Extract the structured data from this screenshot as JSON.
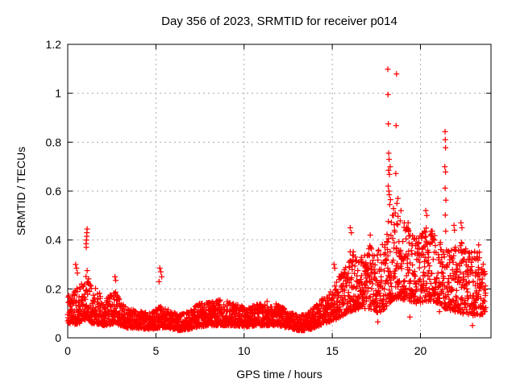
{
  "window": {
    "background": "#ffffff"
  },
  "chart_data": {
    "type": "scatter",
    "title": "Day 356 of 2023, SRMTID for receiver p014",
    "xlabel": "GPS time / hours",
    "ylabel": "SRMTID / TECUs",
    "xlim": [
      0,
      24
    ],
    "ylim": [
      0,
      1.2
    ],
    "x_ticks": [
      {
        "v": 0,
        "label": "0"
      },
      {
        "v": 5,
        "label": "5"
      },
      {
        "v": 10,
        "label": "10"
      },
      {
        "v": 15,
        "label": "15"
      },
      {
        "v": 20,
        "label": "20"
      }
    ],
    "y_ticks": [
      {
        "v": 0,
        "label": "0"
      },
      {
        "v": 0.2,
        "label": "0.2"
      },
      {
        "v": 0.4,
        "label": "0.4"
      },
      {
        "v": 0.6,
        "label": "0.6"
      },
      {
        "v": 0.8,
        "label": "0.8"
      },
      {
        "v": 1,
        "label": "1"
      },
      {
        "v": 1.2,
        "label": "1.2"
      }
    ],
    "grid": {
      "visible": true,
      "color": "#a9a9a9",
      "dash": "2,4"
    },
    "axis_color": "#000000",
    "legend": null,
    "series": [
      {
        "name": "SRMTID",
        "marker": "plus",
        "color": "#ff0000",
        "sampling_points_per_hour": 120,
        "time_start_hour": 0,
        "time_end_hour": 23.7,
        "band_envelope": [
          [
            0.0,
            0.06,
            0.17
          ],
          [
            0.4,
            0.055,
            0.19
          ],
          [
            0.7,
            0.06,
            0.23
          ],
          [
            0.9,
            0.07,
            0.22
          ],
          [
            1.1,
            0.08,
            0.28
          ],
          [
            1.35,
            0.06,
            0.21
          ],
          [
            1.7,
            0.055,
            0.2
          ],
          [
            2.1,
            0.05,
            0.15
          ],
          [
            2.45,
            0.055,
            0.18
          ],
          [
            2.7,
            0.06,
            0.2
          ],
          [
            3.0,
            0.05,
            0.15
          ],
          [
            3.4,
            0.04,
            0.12
          ],
          [
            4.0,
            0.038,
            0.11
          ],
          [
            4.7,
            0.035,
            0.1
          ],
          [
            5.2,
            0.04,
            0.13
          ],
          [
            5.7,
            0.04,
            0.115
          ],
          [
            6.3,
            0.03,
            0.095
          ],
          [
            6.9,
            0.035,
            0.11
          ],
          [
            7.4,
            0.045,
            0.14
          ],
          [
            8.1,
            0.05,
            0.145
          ],
          [
            8.8,
            0.05,
            0.16
          ],
          [
            9.4,
            0.05,
            0.14
          ],
          [
            10.1,
            0.045,
            0.125
          ],
          [
            10.7,
            0.05,
            0.135
          ],
          [
            11.3,
            0.05,
            0.15
          ],
          [
            11.9,
            0.05,
            0.14
          ],
          [
            12.5,
            0.04,
            0.11
          ],
          [
            13.1,
            0.03,
            0.09
          ],
          [
            13.6,
            0.03,
            0.1
          ],
          [
            14.1,
            0.045,
            0.14
          ],
          [
            14.6,
            0.06,
            0.17
          ],
          [
            15.1,
            0.07,
            0.21
          ],
          [
            15.6,
            0.09,
            0.28
          ],
          [
            16.1,
            0.11,
            0.38
          ],
          [
            16.6,
            0.12,
            0.33
          ],
          [
            17.1,
            0.12,
            0.38
          ],
          [
            17.6,
            0.1,
            0.36
          ],
          [
            18.0,
            0.12,
            0.42
          ],
          [
            18.35,
            0.15,
            0.54
          ],
          [
            18.8,
            0.16,
            0.5
          ],
          [
            19.3,
            0.15,
            0.45
          ],
          [
            19.8,
            0.14,
            0.41
          ],
          [
            20.3,
            0.15,
            0.46
          ],
          [
            20.8,
            0.15,
            0.43
          ],
          [
            21.3,
            0.12,
            0.37
          ],
          [
            21.8,
            0.11,
            0.36
          ],
          [
            22.3,
            0.1,
            0.4
          ],
          [
            22.8,
            0.09,
            0.35
          ],
          [
            23.3,
            0.09,
            0.36
          ],
          [
            23.7,
            0.1,
            0.28
          ]
        ],
        "outliers": [
          [
            0.45,
            0.3
          ],
          [
            0.5,
            0.285
          ],
          [
            0.55,
            0.265
          ],
          [
            1.04,
            0.385
          ],
          [
            1.05,
            0.37
          ],
          [
            1.06,
            0.4
          ],
          [
            1.08,
            0.415
          ],
          [
            1.09,
            0.43
          ],
          [
            1.1,
            0.445
          ],
          [
            2.68,
            0.25
          ],
          [
            2.72,
            0.235
          ],
          [
            5.18,
            0.23
          ],
          [
            5.22,
            0.285
          ],
          [
            5.28,
            0.27
          ],
          [
            5.33,
            0.25
          ],
          [
            15.1,
            0.3
          ],
          [
            15.14,
            0.285
          ],
          [
            16.02,
            0.45
          ],
          [
            16.08,
            0.43
          ],
          [
            17.15,
            0.42
          ],
          [
            17.58,
            0.065
          ],
          [
            18.15,
            1.098
          ],
          [
            18.16,
            0.995
          ],
          [
            18.17,
            0.62
          ],
          [
            18.18,
            0.875
          ],
          [
            18.19,
            0.685
          ],
          [
            18.2,
            0.755
          ],
          [
            18.21,
            0.6
          ],
          [
            18.22,
            0.73
          ],
          [
            18.23,
            0.585
          ],
          [
            18.24,
            0.668
          ],
          [
            18.26,
            0.545
          ],
          [
            18.28,
            0.7
          ],
          [
            18.3,
            0.565
          ],
          [
            18.6,
            0.672
          ],
          [
            18.62,
            0.868
          ],
          [
            18.64,
            1.079
          ],
          [
            18.66,
            0.55
          ],
          [
            18.72,
            0.57
          ],
          [
            18.9,
            0.52
          ],
          [
            19.3,
            0.47
          ],
          [
            19.4,
            0.085
          ],
          [
            20.3,
            0.52
          ],
          [
            20.36,
            0.5
          ],
          [
            21.08,
            0.107
          ],
          [
            21.38,
            0.7
          ],
          [
            21.4,
            0.843
          ],
          [
            21.4,
            0.612
          ],
          [
            21.41,
            0.81
          ],
          [
            21.41,
            0.502
          ],
          [
            21.42,
            0.777
          ],
          [
            21.42,
            0.678
          ],
          [
            21.43,
            0.436
          ],
          [
            21.44,
            0.563
          ],
          [
            21.9,
            0.46
          ],
          [
            21.93,
            0.44
          ],
          [
            22.3,
            0.47
          ],
          [
            22.35,
            0.45
          ],
          [
            22.95,
            0.05
          ],
          [
            23.3,
            0.38
          ]
        ]
      }
    ]
  }
}
